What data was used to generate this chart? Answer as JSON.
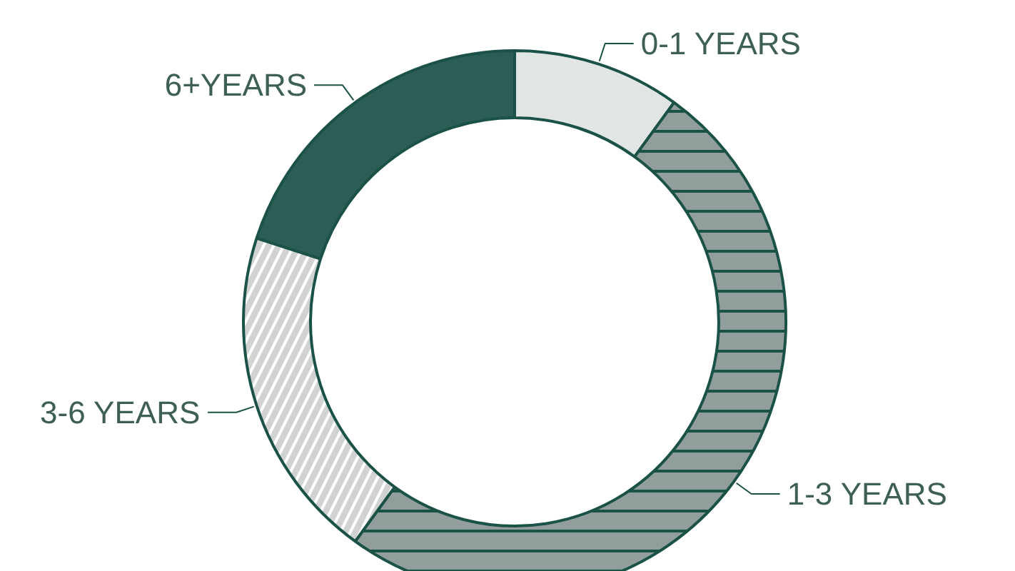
{
  "chart_data": {
    "type": "donut",
    "categories": [
      "0-1 YEARS",
      "1-3 YEARS",
      "3-6 YEARS",
      "6+YEARS"
    ],
    "values": [
      10,
      50,
      20,
      20
    ],
    "colors": [
      "#e1e6e5",
      "#919e9b",
      "#d0d3d1",
      "#2d5e56"
    ]
  }
}
